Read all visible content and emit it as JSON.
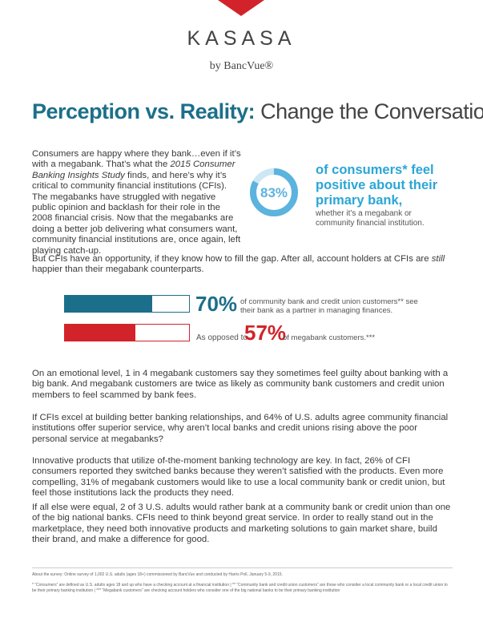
{
  "header": {
    "brand": "KASASA",
    "byline": "by BancVue®"
  },
  "title": {
    "bold": "Perception vs. Reality:",
    "light": "Change the Conversation"
  },
  "intro": {
    "before": "Consumers are happy where they bank…even if it’s with a megabank. That’s what the ",
    "italic": "2015 Consumer Banking Insights Study",
    "after": " finds, and here’s why it’s critical to community financial institutions (CFIs). The megabanks have struggled with negative public opinion and backlash for their role in the 2008 financial crisis. Now that the megabanks are doing a better job delivering what consumers want, community financial institutions are, once again, left playing catch-up."
  },
  "callout": {
    "donut": {
      "value": 83,
      "label": "83%"
    },
    "headline": "of consumers* feel positive about their primary bank,",
    "sub": "whether it’s a megabank or community financial institution."
  },
  "opportunity": {
    "before": "But CFIs have an opportunity, if they know how to fill the gap. After all, account holders at CFIs are ",
    "italic": "still",
    "after": " happier than their megabank counterparts."
  },
  "bars": [
    {
      "value": 70,
      "label": "70%",
      "text": "of community bank and credit union customers** see their bank as a partner in managing finances."
    },
    {
      "prefix": "As opposed to",
      "value": 57,
      "label": "57%",
      "text": "of megabank customers.***"
    }
  ],
  "paragraphs": [
    "On an emotional level, 1 in 4 megabank customers say they sometimes feel guilty about banking with a big bank. And megabank customers are twice as likely as community bank customers and credit union members to feel scammed by bank fees.",
    "If CFIs excel at building better banking relationships, and 64% of U.S. adults agree community financial institutions offer superior service, why aren’t local banks and credit unions rising above the poor personal service at megabanks?",
    "Innovative products that utilize of-the-moment banking technology are key. In fact, 26% of CFI consumers reported they switched banks because they weren’t satisfied with the products. Even more compelling, 31% of megabank customers would like to use a local community bank or credit union, but feel those institutions lack the products they need.",
    "If all else were equal, 2 of 3 U.S. adults would rather bank at a community bank or credit union than one of the big national banks. CFIs need to think beyond great service. In order to really stand out in the marketplace, they need both innovative products and marketing solutions to gain market share, build their brand, and make a difference for good."
  ],
  "footnotes": [
    "About the survey: Online survey of 1,002 U.S. adults (ages 18+) commissioned by BancVue and conducted by Harris Poll, January 5-9, 2015.",
    "* “Consumers” are defined as U.S. adults ages 18 and up who have a checking account at a financial institution | ** “Community bank and credit union customers” are those who consider a local community bank or a local credit union to be their primary banking institution | *** “Megabank customers” are checking account holders who consider one of the big national banks to be their primary banking institution"
  ]
}
